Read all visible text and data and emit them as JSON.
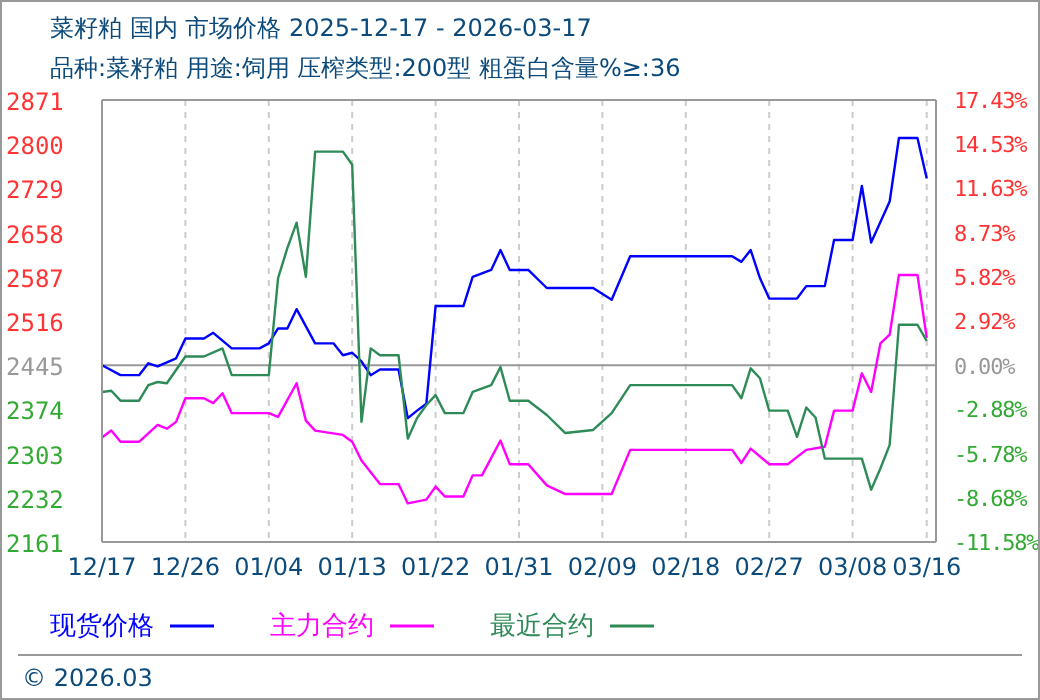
{
  "chart_data": {
    "type": "line",
    "title": "菜籽粕 国内 市场价格 2025-12-17 - 2026-03-17",
    "subtitle": "品种:菜籽粕 用途:饲用 压榨类型:200型 粗蛋白含量%≥:36",
    "annotations": [
      "© 2026.03"
    ],
    "xlim": [
      "2025-12-17",
      "2026-03-17"
    ],
    "xticks": [
      {
        "value": "2025-12-17",
        "label": "12/17"
      },
      {
        "value": "2025-12-26",
        "label": "12/26"
      },
      {
        "value": "2026-01-04",
        "label": "01/04"
      },
      {
        "value": "2026-01-13",
        "label": "01/13"
      },
      {
        "value": "2026-01-22",
        "label": "01/22"
      },
      {
        "value": "2026-01-31",
        "label": "01/31"
      },
      {
        "value": "2026-02-09",
        "label": "02/09"
      },
      {
        "value": "2026-02-18",
        "label": "02/18"
      },
      {
        "value": "2026-02-27",
        "label": "02/27"
      },
      {
        "value": "2026-03-08",
        "label": "03/08"
      },
      {
        "value": "2026-03-16",
        "label": "03/16"
      }
    ],
    "ylim": [
      2161,
      2871
    ],
    "yticks": [
      2161,
      2232,
      2303,
      2374,
      2445,
      2516,
      2587,
      2658,
      2729,
      2800,
      2871
    ],
    "y2lim": [
      -11.58,
      17.43
    ],
    "y2ticks": [
      {
        "value": -11.58,
        "label": "-11.58%"
      },
      {
        "value": -8.68,
        "label": "-8.68%"
      },
      {
        "value": -5.78,
        "label": "-5.78%"
      },
      {
        "value": -2.88,
        "label": "-2.88%"
      },
      {
        "value": 0,
        "label": "0.00%"
      },
      {
        "value": 2.92,
        "label": "2.92%"
      },
      {
        "value": 5.82,
        "label": "5.82%"
      },
      {
        "value": 8.73,
        "label": "8.73%"
      },
      {
        "value": 11.63,
        "label": "11.63%"
      },
      {
        "value": 14.53,
        "label": "14.53%"
      },
      {
        "value": 17.43,
        "label": "17.43%"
      }
    ],
    "grid": true,
    "legend": "bottom",
    "line_style": "solid",
    "marker": "none",
    "ref_lines": [
      {
        "axis": "y",
        "value": 2445,
        "label": null,
        "color": "#999999"
      }
    ],
    "series": [
      {
        "name": "现货价格",
        "color": "#0000ff",
        "x": [
          "2025-12-17",
          "2025-12-19",
          "2025-12-21",
          "2025-12-22",
          "2025-12-23",
          "2025-12-25",
          "2025-12-26",
          "2025-12-28",
          "2025-12-29",
          "2025-12-31",
          "2026-01-03",
          "2026-01-04",
          "2026-01-05",
          "2026-01-06",
          "2026-01-07",
          "2026-01-09",
          "2026-01-11",
          "2026-01-12",
          "2026-01-13",
          "2026-01-14",
          "2026-01-15",
          "2026-01-16",
          "2026-01-18",
          "2026-01-19",
          "2026-01-20",
          "2026-01-21",
          "2026-01-22",
          "2026-01-25",
          "2026-01-26",
          "2026-01-28",
          "2026-01-29",
          "2026-01-30",
          "2026-02-01",
          "2026-02-03",
          "2026-02-08",
          "2026-02-10",
          "2026-02-12",
          "2026-02-23",
          "2026-02-24",
          "2026-02-25",
          "2026-02-26",
          "2026-02-27",
          "2026-03-02",
          "2026-03-03",
          "2026-03-05",
          "2026-03-06",
          "2026-03-08",
          "2026-03-09",
          "2026-03-10",
          "2026-03-12",
          "2026-03-13",
          "2026-03-15",
          "2026-03-16"
        ],
        "values": [
          2445,
          2429,
          2429,
          2448,
          2443,
          2456,
          2488,
          2488,
          2497,
          2472,
          2472,
          2480,
          2504,
          2504,
          2535,
          2480,
          2480,
          2461,
          2465,
          2451,
          2429,
          2438,
          2438,
          2360,
          2372,
          2383,
          2540,
          2540,
          2587,
          2598,
          2630,
          2598,
          2598,
          2569,
          2569,
          2550,
          2620,
          2620,
          2611,
          2630,
          2585,
          2552,
          2552,
          2572,
          2572,
          2646,
          2646,
          2733,
          2642,
          2708,
          2810,
          2810,
          2745
        ]
      },
      {
        "name": "主力合约",
        "color": "#ff00ff",
        "x": [
          "2025-12-17",
          "2025-12-18",
          "2025-12-19",
          "2025-12-21",
          "2025-12-23",
          "2025-12-24",
          "2025-12-25",
          "2025-12-26",
          "2025-12-28",
          "2025-12-29",
          "2025-12-30",
          "2025-12-31",
          "2026-01-04",
          "2026-01-05",
          "2026-01-07",
          "2026-01-08",
          "2026-01-09",
          "2026-01-12",
          "2026-01-13",
          "2026-01-14",
          "2026-01-16",
          "2026-01-18",
          "2026-01-19",
          "2026-01-21",
          "2026-01-22",
          "2026-01-23",
          "2026-01-25",
          "2026-01-26",
          "2026-01-27",
          "2026-01-29",
          "2026-01-30",
          "2026-02-01",
          "2026-02-03",
          "2026-02-05",
          "2026-02-10",
          "2026-02-12",
          "2026-02-23",
          "2026-02-24",
          "2026-02-25",
          "2026-02-27",
          "2026-03-01",
          "2026-03-03",
          "2026-03-05",
          "2026-03-06",
          "2026-03-08",
          "2026-03-09",
          "2026-03-10",
          "2026-03-11",
          "2026-03-12",
          "2026-03-13",
          "2026-03-15",
          "2026-03-16"
        ],
        "values": [
          2329,
          2340,
          2322,
          2322,
          2349,
          2343,
          2354,
          2392,
          2392,
          2384,
          2400,
          2368,
          2368,
          2362,
          2416,
          2356,
          2340,
          2333,
          2322,
          2292,
          2254,
          2254,
          2223,
          2229,
          2250,
          2234,
          2234,
          2268,
          2268,
          2324,
          2286,
          2286,
          2252,
          2238,
          2238,
          2309,
          2309,
          2288,
          2311,
          2286,
          2286,
          2309,
          2314,
          2372,
          2372,
          2432,
          2402,
          2480,
          2494,
          2590,
          2590,
          2489
        ]
      },
      {
        "name": "最近合约",
        "color": "#2e8b57",
        "x": [
          "2025-12-17",
          "2025-12-18",
          "2025-12-19",
          "2025-12-21",
          "2025-12-22",
          "2025-12-23",
          "2025-12-24",
          "2025-12-26",
          "2025-12-28",
          "2025-12-30",
          "2025-12-31",
          "2026-01-04",
          "2026-01-05",
          "2026-01-06",
          "2026-01-07",
          "2026-01-08",
          "2026-01-09",
          "2026-01-12",
          "2026-01-13",
          "2026-01-14",
          "2026-01-15",
          "2026-01-16",
          "2026-01-18",
          "2026-01-19",
          "2026-01-20",
          "2026-01-21",
          "2026-01-22",
          "2026-01-23",
          "2026-01-25",
          "2026-01-26",
          "2026-01-28",
          "2026-01-29",
          "2026-01-30",
          "2026-02-01",
          "2026-02-03",
          "2026-02-05",
          "2026-02-08",
          "2026-02-10",
          "2026-02-12",
          "2026-02-23",
          "2026-02-24",
          "2026-02-25",
          "2026-02-26",
          "2026-02-27",
          "2026-03-01",
          "2026-03-02",
          "2026-03-03",
          "2026-03-04",
          "2026-03-05",
          "2026-03-06",
          "2026-03-09",
          "2026-03-10",
          "2026-03-11",
          "2026-03-12",
          "2026-03-13",
          "2026-03-15",
          "2026-03-16"
        ],
        "values": [
          2402,
          2404,
          2388,
          2388,
          2413,
          2418,
          2416,
          2459,
          2459,
          2472,
          2429,
          2429,
          2585,
          2633,
          2674,
          2587,
          2788,
          2788,
          2767,
          2354,
          2472,
          2461,
          2461,
          2327,
          2360,
          2381,
          2397,
          2368,
          2368,
          2402,
          2413,
          2442,
          2388,
          2388,
          2365,
          2336,
          2341,
          2368,
          2413,
          2413,
          2392,
          2440,
          2424,
          2372,
          2372,
          2330,
          2377,
          2361,
          2295,
          2295,
          2295,
          2245,
          2279,
          2317,
          2510,
          2510,
          2484
        ]
      }
    ]
  }
}
